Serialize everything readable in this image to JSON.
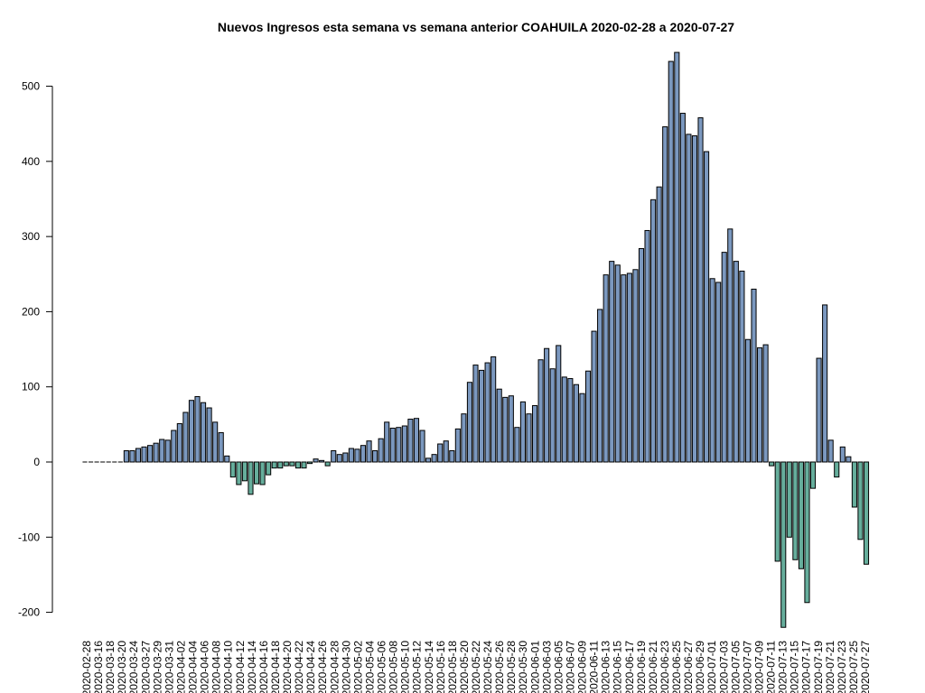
{
  "chart_data": {
    "type": "bar",
    "title": "Nuevos Ingresos esta semana vs semana anterior COAHUILA 2020-02-28 a 2020-07-27",
    "xlabel": "",
    "ylabel": "",
    "ylim": [
      -200,
      500
    ],
    "yticks": [
      -200,
      -100,
      0,
      100,
      200,
      300,
      400,
      500
    ],
    "colors": {
      "positive": "#7b98bf",
      "negative": "#66ae9c"
    },
    "x_tick_labels": [
      "2020-02-28",
      "2020-03-16",
      "2020-03-18",
      "2020-03-20",
      "2020-03-24",
      "2020-03-27",
      "2020-03-29",
      "2020-03-31",
      "2020-04-02",
      "2020-04-04",
      "2020-04-06",
      "2020-04-08",
      "2020-04-10",
      "2020-04-12",
      "2020-04-14",
      "2020-04-16",
      "2020-04-18",
      "2020-04-20",
      "2020-04-22",
      "2020-04-24",
      "2020-04-26",
      "2020-04-28",
      "2020-04-30",
      "2020-05-02",
      "2020-05-04",
      "2020-05-06",
      "2020-05-08",
      "2020-05-10",
      "2020-05-12",
      "2020-05-14",
      "2020-05-16",
      "2020-05-18",
      "2020-05-20",
      "2020-05-22",
      "2020-05-24",
      "2020-05-26",
      "2020-05-28",
      "2020-05-30",
      "2020-06-01",
      "2020-06-03",
      "2020-06-05",
      "2020-06-07",
      "2020-06-09",
      "2020-06-11",
      "2020-06-13",
      "2020-06-15",
      "2020-06-17",
      "2020-06-19",
      "2020-06-21",
      "2020-06-23",
      "2020-06-25",
      "2020-06-27",
      "2020-06-29",
      "2020-07-01",
      "2020-07-03",
      "2020-07-05",
      "2020-07-07",
      "2020-07-09",
      "2020-07-11",
      "2020-07-13",
      "2020-07-15",
      "2020-07-17",
      "2020-07-19",
      "2020-07-21",
      "2020-07-23",
      "2020-07-25",
      "2020-07-27"
    ],
    "values": [
      0,
      0,
      0,
      0,
      0,
      0,
      0,
      15,
      15,
      18,
      20,
      22,
      25,
      30,
      29,
      42,
      51,
      66,
      82,
      87,
      79,
      72,
      53,
      39,
      8,
      -20,
      -30,
      -25,
      -43,
      -29,
      -30,
      -17,
      -8,
      -8,
      -5,
      -5,
      -8,
      -8,
      -2,
      4,
      2,
      -5,
      15,
      10,
      12,
      18,
      17,
      22,
      28,
      15,
      31,
      53,
      45,
      46,
      48,
      57,
      58,
      42,
      5,
      10,
      24,
      28,
      15,
      44,
      64,
      106,
      129,
      122,
      132,
      140,
      97,
      86,
      88,
      46,
      80,
      64,
      75,
      136,
      151,
      124,
      155,
      113,
      111,
      103,
      91,
      121,
      174,
      203,
      249,
      267,
      262,
      249,
      251,
      256,
      284,
      308,
      349,
      366,
      446,
      533,
      545,
      464,
      436,
      434,
      458,
      413,
      244,
      239,
      279,
      310,
      267,
      254,
      163,
      230,
      152,
      156,
      -5,
      -132,
      -220,
      -100,
      -130,
      -142,
      -187,
      -35,
      138,
      209,
      29,
      -20,
      20,
      7,
      -60,
      -103,
      -136
    ]
  }
}
